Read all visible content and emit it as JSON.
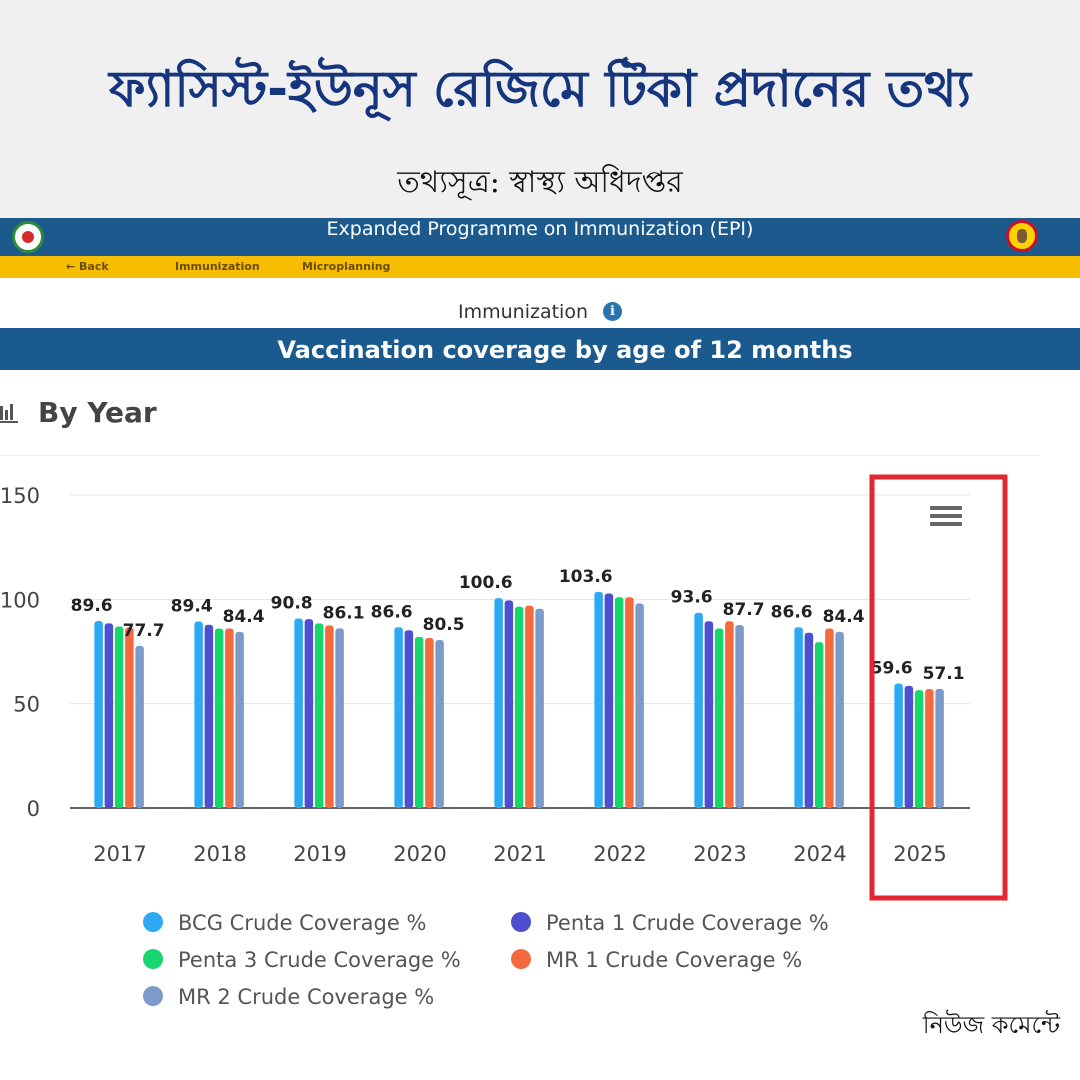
{
  "headline": {
    "title": "ফ্যাসিস্ট-ইউনূস রেজিমে টিকা প্রদানের তথ্য",
    "source": "তথ্যসূত্র: স্বাস্থ্য অধিদপ্তর"
  },
  "epi": {
    "title": "Expanded Programme on Immunization (EPI)",
    "nav": {
      "back": "← Back",
      "immunization": "Immunization",
      "microplanning": "Microplanning"
    }
  },
  "section": {
    "label": "Immunization",
    "info_icon": "i",
    "coverage_title": "Vaccination coverage by age of 12 months",
    "by_year": "By Year"
  },
  "credit": "নিউজ কমেন্টে",
  "colors": {
    "headline": "#15357e",
    "epi_bar": "#1c5a8e",
    "nav_bar": "#f7bd00",
    "highlight": "#e3262f"
  },
  "chart_data": {
    "type": "bar",
    "categories": [
      "2017",
      "2018",
      "2019",
      "2020",
      "2021",
      "2022",
      "2023",
      "2024",
      "2025"
    ],
    "ylim": [
      0,
      150
    ],
    "yticks": [
      0,
      50,
      100,
      150
    ],
    "grid": true,
    "legend_position": "bottom",
    "highlighted_category": "2025",
    "series": [
      {
        "name": "BCG Crude Coverage %",
        "color": "#2eaaf5",
        "values": [
          89.6,
          89.4,
          90.8,
          86.6,
          100.6,
          103.6,
          93.6,
          86.6,
          59.6
        ]
      },
      {
        "name": "Penta 1 Crude Coverage %",
        "color": "#4e4ed0",
        "values": [
          88.5,
          87.8,
          90.5,
          85.2,
          99.5,
          102.8,
          89.5,
          84.0,
          58.5
        ]
      },
      {
        "name": "Penta 3 Crude Coverage %",
        "color": "#18d66e",
        "values": [
          87.0,
          86.0,
          88.5,
          82.0,
          96.5,
          101.0,
          86.0,
          79.5,
          56.5
        ]
      },
      {
        "name": "MR 1 Crude Coverage %",
        "color": "#f46a3e",
        "values": [
          86.5,
          86.0,
          87.5,
          81.5,
          97.0,
          101.0,
          89.5,
          86.0,
          57.0
        ]
      },
      {
        "name": "MR 2 Crude Coverage %",
        "color": "#7c9bcb",
        "values": [
          77.7,
          84.4,
          86.1,
          80.5,
          95.5,
          98.0,
          87.7,
          84.4,
          57.1
        ]
      }
    ],
    "data_labels": [
      {
        "category": "2017",
        "series": 0,
        "text": "89.6"
      },
      {
        "category": "2017",
        "series": 4,
        "text": "77.7"
      },
      {
        "category": "2018",
        "series": 0,
        "text": "89.4"
      },
      {
        "category": "2018",
        "series": 4,
        "text": "84.4"
      },
      {
        "category": "2019",
        "series": 0,
        "text": "90.8"
      },
      {
        "category": "2019",
        "series": 4,
        "text": "86.1"
      },
      {
        "category": "2020",
        "series": 0,
        "text": "86.6"
      },
      {
        "category": "2020",
        "series": 4,
        "text": "80.5"
      },
      {
        "category": "2021",
        "series": 0,
        "text": "100.6"
      },
      {
        "category": "2022",
        "series": 0,
        "text": "103.6"
      },
      {
        "category": "2023",
        "series": 0,
        "text": "93.6"
      },
      {
        "category": "2023",
        "series": 4,
        "text": "87.7"
      },
      {
        "category": "2024",
        "series": 0,
        "text": "86.6"
      },
      {
        "category": "2024",
        "series": 4,
        "text": "84.4"
      },
      {
        "category": "2025",
        "series": 0,
        "text": "59.6"
      },
      {
        "category": "2025",
        "series": 4,
        "text": "57.1"
      }
    ]
  }
}
